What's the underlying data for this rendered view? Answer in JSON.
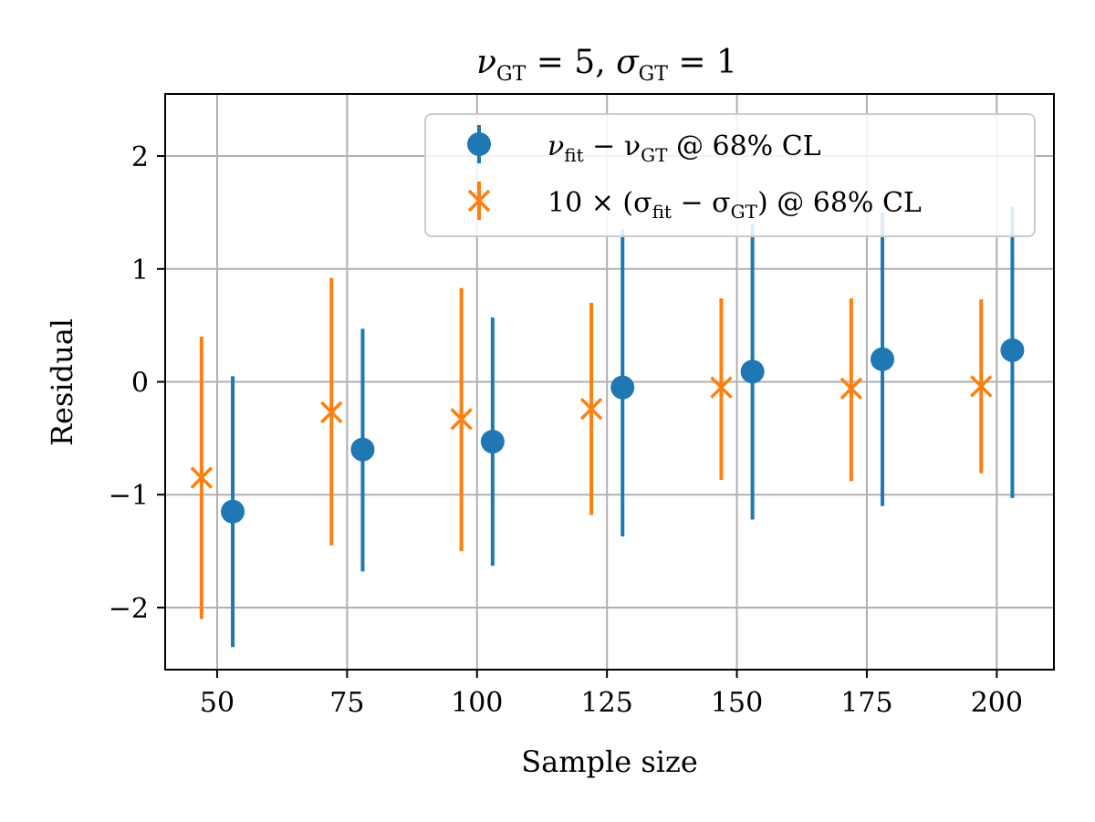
{
  "chart_data": {
    "type": "errorbar",
    "title": "ν_GT = 5, σ_GT = 1",
    "title_parts": {
      "nu": "ν",
      "nu_sub": "GT",
      "nu_eq": " = 5, ",
      "sigma": "σ",
      "sigma_sub": "GT",
      "sigma_eq": " = 1"
    },
    "xlabel": "Sample size",
    "ylabel": "Residual",
    "xlim": [
      40,
      211
    ],
    "ylim": [
      -2.55,
      2.55
    ],
    "xticks": [
      50,
      75,
      100,
      125,
      150,
      175,
      200
    ],
    "xtick_labels": [
      "50",
      "75",
      "100",
      "125",
      "150",
      "175",
      "200"
    ],
    "yticks": [
      -2,
      -1,
      0,
      1,
      2
    ],
    "ytick_labels": [
      "−2",
      "−1",
      "0",
      "1",
      "2"
    ],
    "grid": true,
    "legend_position": "top-right",
    "series": [
      {
        "name": "ν_fit − ν_GT @ 68% CL",
        "color": "#1f77b4",
        "marker": "circle",
        "x": [
          53,
          78,
          103,
          128,
          153,
          178,
          203
        ],
        "y": [
          -1.15,
          -0.6,
          -0.53,
          -0.05,
          0.09,
          0.2,
          0.28
        ],
        "yerr_low": [
          -2.35,
          -1.68,
          -1.63,
          -1.37,
          -1.22,
          -1.1,
          -1.03
        ],
        "yerr_high": [
          0.05,
          0.47,
          0.57,
          1.35,
          1.4,
          1.5,
          1.55
        ]
      },
      {
        "name": "10 × (σ_fit − σ_GT) @ 68% CL",
        "color": "#ff7f0e",
        "marker": "x",
        "x": [
          47,
          72,
          97,
          122,
          147,
          172,
          197
        ],
        "y": [
          -0.85,
          -0.27,
          -0.33,
          -0.24,
          -0.05,
          -0.06,
          -0.04
        ],
        "yerr_low": [
          -2.1,
          -1.45,
          -1.5,
          -1.18,
          -0.87,
          -0.88,
          -0.81
        ],
        "yerr_high": [
          0.4,
          0.92,
          0.83,
          0.7,
          0.74,
          0.74,
          0.73
        ]
      }
    ],
    "legend": [
      {
        "pre": "ν",
        "pre_sub": "fit",
        "mid": " − ν",
        "mid_sub": "GT",
        "post": " @ 68% CL"
      },
      {
        "pre": "10 × (σ",
        "pre_sub": "fit",
        "mid": " − σ",
        "mid_sub": "GT",
        "post": ") @ 68% CL"
      }
    ]
  }
}
